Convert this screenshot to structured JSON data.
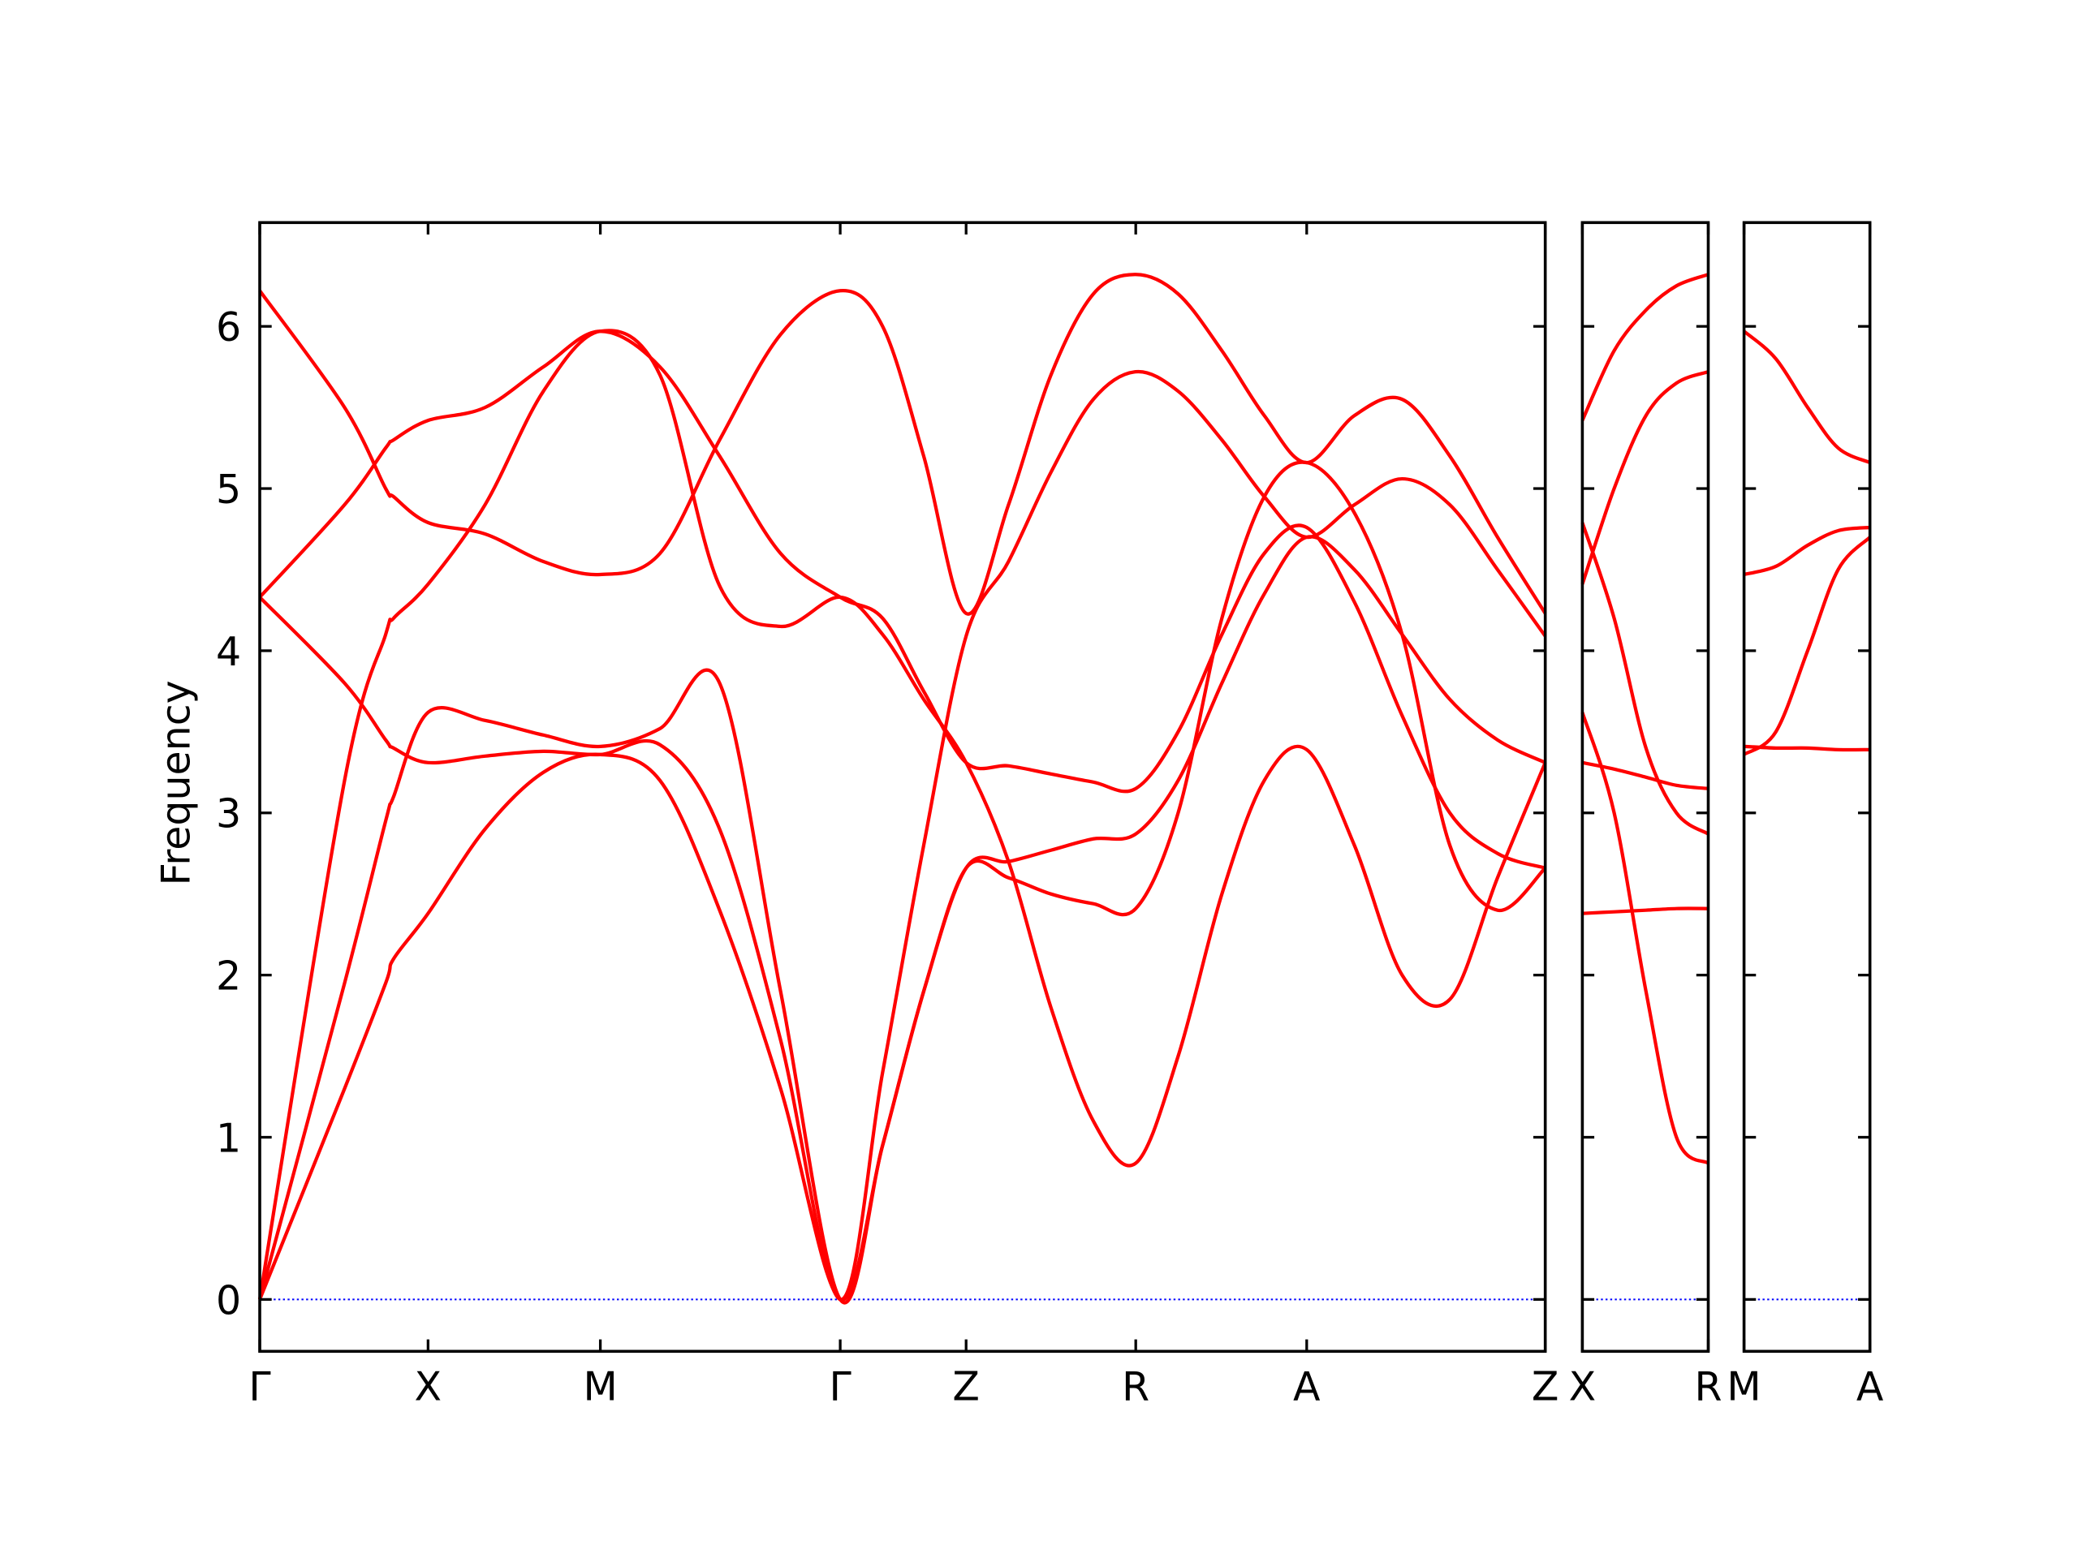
{
  "chart_data": [
    {
      "type": "line",
      "ylabel": "Frequency",
      "ytick_labels": true,
      "x": [
        0,
        0.64,
        0.95,
        1.01,
        1.27,
        1.7,
        2.14,
        2.57,
        3.02,
        3.47,
        3.93,
        4.38,
        4.7,
        5.01,
        5.33,
        5.65,
        5.97,
        6.29,
        6.61,
        6.93,
        7.26,
        7.58,
        7.9,
        8.26,
        8.62,
        8.98,
        9.34,
        9.7
      ],
      "xlim": [
        0,
        9.7
      ],
      "ylim": [
        -0.32,
        6.64
      ],
      "xticks": [
        {
          "value": 0,
          "label": "Γ"
        },
        {
          "value": 1.27,
          "label": "X"
        },
        {
          "value": 2.57,
          "label": "M"
        },
        {
          "value": 4.38,
          "label": "Γ"
        },
        {
          "value": 5.33,
          "label": "Z"
        },
        {
          "value": 6.61,
          "label": "R"
        },
        {
          "value": 7.9,
          "label": "A"
        },
        {
          "value": 9.7,
          "label": "Z"
        }
      ],
      "yticks": [
        0,
        1,
        2,
        3,
        4,
        5,
        6
      ],
      "hline": 0,
      "hline_color": "#0000ff",
      "series": [
        {
          "color": "#ff0000",
          "values": [
            0,
            1.3,
            1.95,
            2.1,
            2.38,
            2.9,
            3.25,
            3.36,
            3.2,
            2.4,
            1.3,
            0,
            0.95,
            1.9,
            2.66,
            2.6,
            2.5,
            2.44,
            2.41,
            3.0,
            4.2,
            4.95,
            5.16,
            4.85,
            4.1,
            2.8,
            2.4,
            2.66
          ]
        },
        {
          "color": "#ff0000",
          "values": [
            0,
            1.95,
            2.95,
            3.1,
            3.62,
            3.57,
            3.48,
            3.41,
            3.52,
            3.8,
            1.9,
            0,
            0.95,
            1.9,
            2.66,
            2.7,
            2.77,
            2.84,
            2.87,
            3.2,
            3.8,
            4.35,
            4.7,
            4.5,
            4.1,
            3.7,
            3.45,
            3.31
          ]
        },
        {
          "color": "#ff0000",
          "values": [
            4.33,
            3.8,
            3.45,
            3.4,
            3.31,
            3.35,
            3.38,
            3.36,
            3.42,
            2.9,
            1.6,
            0,
            1.4,
            2.8,
            4.09,
            4.55,
            5.1,
            5.55,
            5.72,
            5.6,
            5.3,
            4.95,
            4.7,
            4.9,
            5.06,
            4.9,
            4.5,
            4.09
          ]
        },
        {
          "color": "#ff0000",
          "values": [
            0,
            3.2,
            4.1,
            4.2,
            4.41,
            4.9,
            5.6,
            5.97,
            5.7,
            4.4,
            4.15,
            4.33,
            4.1,
            3.7,
            3.31,
            2.7,
            1.8,
            1.1,
            0.84,
            1.5,
            2.5,
            3.2,
            3.39,
            2.8,
            2.0,
            1.85,
            2.6,
            3.31
          ]
        },
        {
          "color": "#ff0000",
          "values": [
            4.33,
            4.9,
            5.25,
            5.3,
            5.42,
            5.5,
            5.75,
            5.97,
            5.75,
            5.2,
            4.6,
            4.33,
            4.2,
            3.75,
            3.31,
            3.29,
            3.24,
            3.19,
            3.15,
            3.5,
            4.1,
            4.6,
            4.76,
            4.3,
            3.6,
            3.0,
            2.75,
            2.66
          ]
        },
        {
          "color": "#ff0000",
          "values": [
            6.22,
            5.5,
            5.0,
            4.95,
            4.79,
            4.72,
            4.55,
            4.47,
            4.6,
            5.3,
            5.95,
            6.22,
            6.0,
            5.2,
            4.23,
            4.9,
            5.7,
            6.2,
            6.32,
            6.2,
            5.85,
            5.45,
            5.16,
            5.45,
            5.55,
            5.2,
            4.7,
            4.23
          ]
        }
      ]
    },
    {
      "type": "line",
      "ytick_labels": false,
      "x": [
        0,
        0.24,
        0.48,
        0.71,
        0.95
      ],
      "xlim": [
        0,
        0.95
      ],
      "ylim": [
        -0.32,
        6.64
      ],
      "xticks": [
        {
          "value": 0,
          "label": "X"
        },
        {
          "value": 0.95,
          "label": "R"
        }
      ],
      "yticks": [
        0,
        1,
        2,
        3,
        4,
        5,
        6
      ],
      "hline": 0,
      "hline_color": "#0000ff",
      "series": [
        {
          "color": "#ff0000",
          "values": [
            5.42,
            5.85,
            6.1,
            6.25,
            6.32
          ]
        },
        {
          "color": "#ff0000",
          "values": [
            4.41,
            5.0,
            5.45,
            5.65,
            5.72
          ]
        },
        {
          "color": "#ff0000",
          "values": [
            4.79,
            4.2,
            3.4,
            3.0,
            2.87
          ]
        },
        {
          "color": "#ff0000",
          "values": [
            3.31,
            3.27,
            3.22,
            3.17,
            3.15
          ]
        },
        {
          "color": "#ff0000",
          "values": [
            3.62,
            3.0,
            1.9,
            1.0,
            0.84
          ]
        },
        {
          "color": "#ff0000",
          "values": [
            2.38,
            2.39,
            2.4,
            2.41,
            2.41
          ]
        }
      ]
    },
    {
      "type": "line",
      "ytick_labels": false,
      "x": [
        0,
        0.24,
        0.48,
        0.71,
        0.95
      ],
      "xlim": [
        0,
        0.95
      ],
      "ylim": [
        -0.32,
        6.64
      ],
      "xticks": [
        {
          "value": 0,
          "label": "M"
        },
        {
          "value": 0.95,
          "label": "A"
        }
      ],
      "yticks": [
        0,
        1,
        2,
        3,
        4,
        5,
        6
      ],
      "hline": 0,
      "hline_color": "#0000ff",
      "series": [
        {
          "color": "#ff0000",
          "values": [
            5.97,
            5.8,
            5.5,
            5.25,
            5.16
          ]
        },
        {
          "color": "#ff0000",
          "values": [
            4.47,
            4.52,
            4.65,
            4.74,
            4.76
          ]
        },
        {
          "color": "#ff0000",
          "values": [
            3.36,
            3.5,
            4.0,
            4.5,
            4.7
          ]
        },
        {
          "color": "#ff0000",
          "values": [
            3.41,
            3.4,
            3.4,
            3.39,
            3.39
          ]
        }
      ]
    }
  ]
}
